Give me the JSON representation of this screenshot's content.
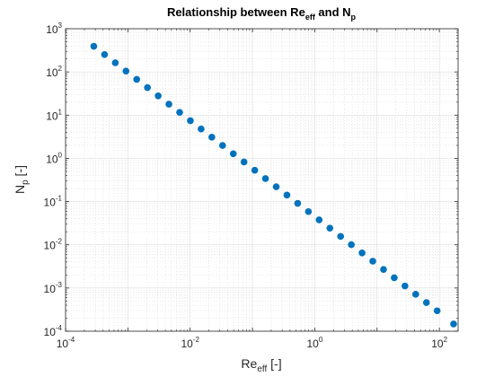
{
  "chart_data": {
    "type": "scatter",
    "title": {
      "main": "Relationship between Re",
      "sub1": "eff",
      "mid": " and N",
      "sub2": "p"
    },
    "xlabel": {
      "main": "Re",
      "sub": "eff",
      "unit": " [-]"
    },
    "ylabel": {
      "main": "N",
      "sub": "p",
      "unit": " [-]"
    },
    "x_scale": "log",
    "y_scale": "log",
    "xlim": [
      0.0001,
      200
    ],
    "ylim": [
      0.0001,
      1000
    ],
    "x_ticks": [
      {
        "value": 0.0001,
        "base": "10",
        "exp": "-4"
      },
      {
        "value": 0.01,
        "base": "10",
        "exp": "-2"
      },
      {
        "value": 1,
        "base": "10",
        "exp": "0"
      },
      {
        "value": 100,
        "base": "10",
        "exp": "2"
      }
    ],
    "y_ticks": [
      {
        "value": 0.0001,
        "base": "10",
        "exp": "-4"
      },
      {
        "value": 0.001,
        "base": "10",
        "exp": "-3"
      },
      {
        "value": 0.01,
        "base": "10",
        "exp": "-2"
      },
      {
        "value": 0.1,
        "base": "10",
        "exp": "-1"
      },
      {
        "value": 1,
        "base": "10",
        "exp": "0"
      },
      {
        "value": 10,
        "base": "10",
        "exp": "1"
      },
      {
        "value": 100,
        "base": "10",
        "exp": "2"
      },
      {
        "value": 1000,
        "base": "10",
        "exp": "3"
      }
    ],
    "grid": true,
    "minor_grid": true,
    "marker_color": "#0072BD",
    "series": [
      {
        "x": [
          0.000284,
          0.000422,
          0.000628,
          0.000933,
          0.001387,
          0.002063,
          0.003068,
          0.00456,
          0.00678,
          0.01008,
          0.01499,
          0.02229,
          0.03314,
          0.04927,
          0.07325,
          0.1089,
          0.1619,
          0.2407,
          0.3579,
          0.5321,
          0.7911,
          1.176,
          1.749,
          2.6,
          3.866,
          5.748,
          8.546,
          12.71,
          18.89,
          28.09,
          41.76,
          62.09,
          92.31,
          169.3
        ],
        "y": [
          392.6,
          252.7,
          162.7,
          104.7,
          67.41,
          43.4,
          27.94,
          17.98,
          11.58,
          7.452,
          4.797,
          3.088,
          1.988,
          1.28,
          0.8238,
          0.5303,
          0.3414,
          0.2198,
          0.1415,
          0.09107,
          0.05862,
          0.03774,
          0.02429,
          0.01564,
          0.01007,
          0.006481,
          0.004172,
          0.002686,
          0.001729,
          0.001113,
          0.000716,
          0.000461,
          0.000297,
          0.000147
        ]
      }
    ]
  }
}
